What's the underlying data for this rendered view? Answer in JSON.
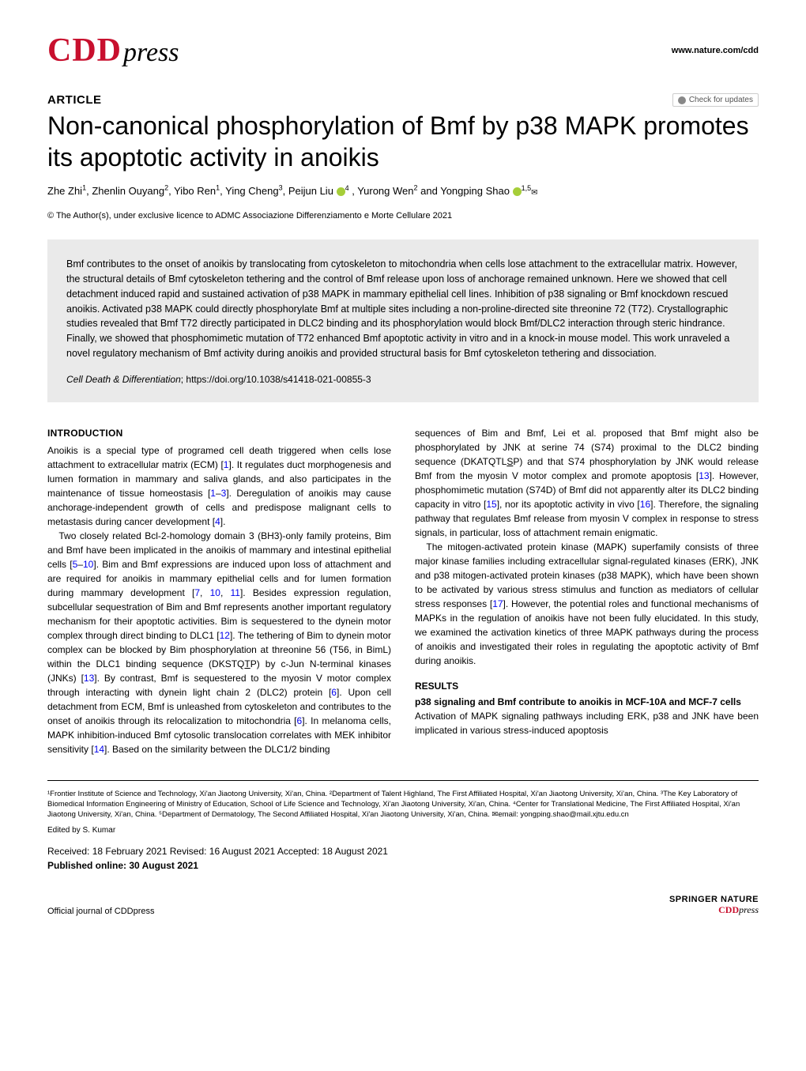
{
  "header": {
    "logo_part1": "CDD",
    "logo_part2": "press",
    "journal_url": "www.nature.com/cdd",
    "check_updates": "Check for updates"
  },
  "article": {
    "label": "ARTICLE",
    "title": "Non-canonical phosphorylation of Bmf by p38 MAPK promotes its apoptotic activity in anoikis",
    "authors_html": "Zhe Zhi<sup>1</sup>, Zhenlin Ouyang<sup>2</sup>, Yibo Ren<sup>1</sup>, Ying Cheng<sup>3</sup>, Peijun Liu",
    "author_liu_sup": "4",
    "authors_mid": ", Yurong Wen<sup>2</sup> and Yongping Shao",
    "author_shao_sup": "1,5",
    "copyright": "© The Author(s), under exclusive licence to ADMC Associazione Differenziamento e Morte Cellulare 2021"
  },
  "abstract": {
    "text": "Bmf contributes to the onset of anoikis by translocating from cytoskeleton to mitochondria when cells lose attachment to the extracellular matrix. However, the structural details of Bmf cytoskeleton tethering and the control of Bmf release upon loss of anchorage remained unknown. Here we showed that cell detachment induced rapid and sustained activation of p38 MAPK in mammary epithelial cell lines. Inhibition of p38 signaling or Bmf knockdown rescued anoikis. Activated p38 MAPK could directly phosphorylate Bmf at multiple sites including a non-proline-directed site threonine 72 (T72). Crystallographic studies revealed that Bmf T72 directly participated in DLC2 binding and its phosphorylation would block Bmf/DLC2 interaction through steric hindrance. Finally, we showed that phosphomimetic mutation of T72 enhanced Bmf apoptotic activity in vitro and in a knock-in mouse model. This work unraveled a novel regulatory mechanism of Bmf activity during anoikis and provided structural basis for Bmf cytoskeleton tethering and dissociation.",
    "journal": "Cell Death & Differentiation",
    "doi": "; https://doi.org/10.1038/s41418-021-00855-3"
  },
  "body": {
    "intro_heading": "INTRODUCTION",
    "intro_p1": "Anoikis is a special type of programed cell death triggered when cells lose attachment to extracellular matrix (ECM) [1]. It regulates duct morphogenesis and lumen formation in mammary and saliva glands, and also participates in the maintenance of tissue homeostasis [1–3]. Deregulation of anoikis may cause anchorage-independent growth of cells and predispose malignant cells to metastasis during cancer development [4].",
    "intro_p2": "Two closely related Bcl-2-homology domain 3 (BH3)-only family proteins, Bim and Bmf have been implicated in the anoikis of mammary and intestinal epithelial cells [5–10]. Bim and Bmf expressions are induced upon loss of attachment and are required for anoikis in mammary epithelial cells and for lumen formation during mammary development [7, 10, 11]. Besides expression regulation, subcellular sequestration of Bim and Bmf represents another important regulatory mechanism for their apoptotic activities. Bim is sequestered to the dynein motor complex through direct binding to DLC1 [12]. The tethering of Bim to dynein motor complex can be blocked by Bim phosphorylation at threonine 56 (T56, in BimL) within the DLC1 binding sequence (DKSTQTP) by c-Jun N-terminal kinases (JNKs) [13]. By contrast, Bmf is sequestered to the myosin V motor complex through interacting with dynein light chain 2 (DLC2) protein [6]. Upon cell detachment from ECM, Bmf is unleashed from cytoskeleton and contributes to the onset of anoikis through its relocalization to mitochondria [6]. In melanoma cells, MAPK inhibition-induced Bmf cytosolic translocation correlates with MEK inhibitor sensitivity [14]. Based on the similarity between the DLC1/2 binding",
    "col2_p1": "sequences of Bim and Bmf, Lei et al. proposed that Bmf might also be phosphorylated by JNK at serine 74 (S74) proximal to the DLC2 binding sequence (DKATQTLSP) and that S74 phosphorylation by JNK would release Bmf from the myosin V motor complex and promote apoptosis [13]. However, phosphomimetic mutation (S74D) of Bmf did not apparently alter its DLC2 binding capacity in vitro [15], nor its apoptotic activity in vivo [16]. Therefore, the signaling pathway that regulates Bmf release from myosin V complex in response to stress signals, in particular, loss of attachment remain enigmatic.",
    "col2_p2": "The mitogen-activated protein kinase (MAPK) superfamily consists of three major kinase families including extracellular signal-regulated kinases (ERK), JNK and p38 mitogen-activated protein kinases (p38 MAPK), which have been shown to be activated by various stress stimulus and function as mediators of cellular stress responses [17]. However, the potential roles and functional mechanisms of MAPKs in the regulation of anoikis have not been fully elucidated. In this study, we examined the activation kinetics of three MAPK pathways during the process of anoikis and investigated their roles in regulating the apoptotic activity of Bmf during anoikis.",
    "results_heading": "RESULTS",
    "results_sub": "p38 signaling and Bmf contribute to anoikis in MCF-10A and MCF-7 cells",
    "results_p1": "Activation of MAPK signaling pathways including ERK, p38 and JNK have been implicated in various stress-induced apoptosis"
  },
  "affiliations": "¹Frontier Institute of Science and Technology, Xi'an Jiaotong University, Xi'an, China. ²Department of Talent Highland, The First Affiliated Hospital, Xi'an Jiaotong University, Xi'an, China. ³The Key Laboratory of Biomedical Information Engineering of Ministry of Education, School of Life Science and Technology, Xi'an Jiaotong University, Xi'an, China. ⁴Center for Translational Medicine, The First Affiliated Hospital, Xi'an Jiaotong University, Xi'an, China. ⁵Department of Dermatology, The Second Affiliated Hospital, Xi'an Jiaotong University, Xi'an, China. ✉email: yongping.shao@mail.xjtu.edu.cn",
  "edited_by": "Edited by S. Kumar",
  "dates": "Received: 18 February 2021  Revised: 16 August 2021  Accepted: 18 August 2021",
  "pub_online": "Published online: 30 August 2021",
  "footer": {
    "left": "Official journal of CDDpress",
    "springer": "SPRINGER NATURE",
    "cdd": "CDD",
    "press": "press"
  },
  "colors": {
    "brand_red": "#c8102e",
    "abstract_bg": "#eaeaea",
    "link_blue": "#0000ee",
    "orcid_green": "#a6ce39"
  }
}
